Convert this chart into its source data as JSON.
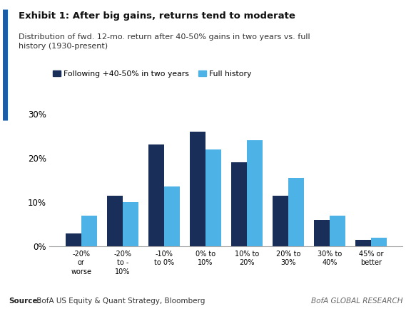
{
  "title_bold": "Exhibit 1: After big gains, returns tend to moderate",
  "subtitle": "Distribution of fwd. 12-mo. return after 40-50% gains in two years vs. full\nhistory (1930-present)",
  "categories": [
    "-20%\nor\nworse",
    "-20%\nto -\n10%",
    "-10%\nto 0%",
    "0% to\n10%",
    "10% to\n20%",
    "20% to\n30%",
    "30% to\n40%",
    "45% or\nbetter"
  ],
  "following_values": [
    3,
    11.5,
    23,
    26,
    19,
    11.5,
    6,
    1.5
  ],
  "full_history_values": [
    7,
    10,
    13.5,
    22,
    24,
    15.5,
    7,
    2
  ],
  "color_following": "#1a2e5a",
  "color_full": "#4db3e6",
  "ylim": [
    0,
    30
  ],
  "yticks": [
    0,
    10,
    20,
    30
  ],
  "ytick_labels": [
    "0%",
    "10%",
    "20%",
    "30%"
  ],
  "legend_label_following": "Following +40-50% in two years",
  "legend_label_full": "Full history",
  "source_bold": "Source:",
  "source_text": " BofA US Equity & Quant Strategy, Bloomberg",
  "bofa_text": "BofA GLOBAL RESEARCH",
  "accent_color": "#1a5ea8",
  "background_color": "#ffffff"
}
